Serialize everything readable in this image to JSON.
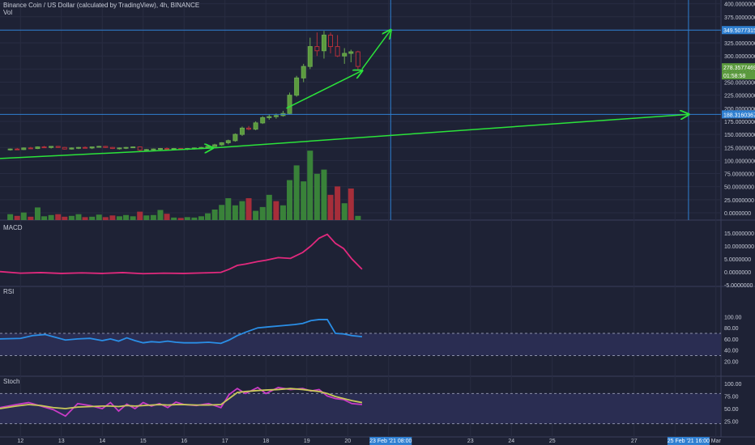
{
  "header": {
    "symbol_title": "Binance Coin / US Dollar (calculated by TradingView), 4h, BINANCE",
    "vol_label": "Vol"
  },
  "panes": {
    "macd_label": "MACD",
    "rsi_label": "RSI",
    "stoch_label": "Stoch"
  },
  "colors": {
    "background": "#1e2235",
    "up": "#3c8d3a",
    "down": "#b5303b",
    "hline": "#2f7fd1",
    "arrow": "#2be33a",
    "macd": "#e2297d",
    "rsi": "#2a8ee6",
    "stoch_k": "#c93bc6",
    "stoch_d": "#c9c85a",
    "band": "#2a2d52"
  },
  "price_axis": {
    "ticks": [
      "400.0000000",
      "375.0000000",
      "350.0000000",
      "325.0000000",
      "300.0000000",
      "275.0000000",
      "250.0000000",
      "225.0000000",
      "200.0000000",
      "175.0000000",
      "150.0000000",
      "125.0000000",
      "100.0000000",
      "75.0000000",
      "50.0000000",
      "25.0000000",
      "0.0000000"
    ],
    "tick_values": [
      400,
      375,
      350,
      325,
      300,
      275,
      250,
      225,
      200,
      175,
      150,
      125,
      100,
      75,
      50,
      25,
      0
    ],
    "current_price_tag": "278.3577469",
    "countdown_tag": "01:58:58",
    "hline_upper_tag": "349.5077315",
    "hline_lower_tag": "188.3160367",
    "hline_upper_value": 349.5,
    "hline_lower_value": 188.3
  },
  "macd_axis": {
    "ticks": [
      "15.0000000",
      "10.0000000",
      "5.0000000",
      "0.0000000",
      "-5.0000000"
    ],
    "tick_values": [
      15,
      10,
      5,
      0,
      -5
    ]
  },
  "rsi_axis": {
    "ticks": [
      "100.00",
      "80.00",
      "60.00",
      "40.00",
      "20.00"
    ],
    "tick_values": [
      100,
      80,
      60,
      40,
      20
    ]
  },
  "stoch_axis": {
    "ticks": [
      "100.00",
      "75.00",
      "50.00",
      "25.00"
    ],
    "tick_values": [
      100,
      75,
      50,
      25
    ]
  },
  "time_axis": {
    "labels": [
      "12",
      "13",
      "14",
      "15",
      "16",
      "17",
      "18",
      "19",
      "20",
      "21",
      "23",
      "24",
      "25",
      "27",
      "28",
      "Mar"
    ],
    "highlight_labels": [
      "23 Feb '21  08:00",
      "25 Feb '21  16:00"
    ]
  },
  "chart_data": {
    "type": "line",
    "x_unit": "days (Feb 2021)",
    "x_range": [
      11.5,
      29
    ],
    "candles": [
      [
        11.75,
        121,
        123,
        119,
        122
      ],
      [
        11.92,
        122,
        124,
        120,
        121
      ],
      [
        12.08,
        121,
        125,
        120,
        124
      ],
      [
        12.25,
        124,
        126,
        122,
        123
      ],
      [
        12.42,
        123,
        127,
        122,
        126
      ],
      [
        12.58,
        126,
        128,
        124,
        125
      ],
      [
        12.75,
        125,
        127,
        123,
        127
      ],
      [
        12.92,
        127,
        128,
        124,
        125
      ],
      [
        13.08,
        125,
        126,
        121,
        122
      ],
      [
        13.25,
        122,
        125,
        121,
        124
      ],
      [
        13.42,
        124,
        126,
        122,
        125
      ],
      [
        13.58,
        125,
        127,
        123,
        124
      ],
      [
        13.75,
        124,
        126,
        122,
        126
      ],
      [
        13.92,
        126,
        128,
        125,
        127
      ],
      [
        14.08,
        127,
        128,
        124,
        125
      ],
      [
        14.25,
        125,
        126,
        122,
        123
      ],
      [
        14.42,
        123,
        125,
        121,
        124
      ],
      [
        14.58,
        124,
        126,
        122,
        125
      ],
      [
        14.75,
        125,
        127,
        124,
        126
      ],
      [
        14.92,
        126,
        127,
        118,
        120
      ],
      [
        15.08,
        120,
        122,
        118,
        121
      ],
      [
        15.25,
        121,
        123,
        119,
        122
      ],
      [
        15.42,
        122,
        124,
        120,
        123
      ],
      [
        15.58,
        123,
        125,
        121,
        122
      ],
      [
        15.75,
        122,
        124,
        120,
        123
      ],
      [
        15.92,
        123,
        124,
        121,
        122
      ],
      [
        16.08,
        122,
        124,
        120,
        123
      ],
      [
        16.25,
        123,
        125,
        121,
        124
      ],
      [
        16.42,
        124,
        126,
        122,
        125
      ],
      [
        16.58,
        125,
        128,
        124,
        127
      ],
      [
        16.75,
        127,
        132,
        125,
        130
      ],
      [
        16.92,
        130,
        135,
        128,
        134
      ],
      [
        17.08,
        134,
        140,
        131,
        138
      ],
      [
        17.25,
        138,
        152,
        136,
        150
      ],
      [
        17.42,
        150,
        165,
        147,
        162
      ],
      [
        17.58,
        162,
        166,
        158,
        160
      ],
      [
        17.75,
        160,
        175,
        158,
        172
      ],
      [
        17.92,
        172,
        185,
        170,
        182
      ],
      [
        18.08,
        182,
        188,
        178,
        184
      ],
      [
        18.25,
        184,
        190,
        180,
        186
      ],
      [
        18.42,
        186,
        195,
        184,
        190
      ],
      [
        18.58,
        190,
        230,
        188,
        225
      ],
      [
        18.75,
        225,
        262,
        222,
        258
      ],
      [
        18.92,
        258,
        285,
        250,
        280
      ],
      [
        19.08,
        280,
        335,
        275,
        318
      ],
      [
        19.25,
        318,
        345,
        300,
        310
      ],
      [
        19.42,
        310,
        348,
        295,
        340
      ],
      [
        19.58,
        340,
        345,
        305,
        318
      ],
      [
        19.75,
        318,
        340,
        298,
        300
      ],
      [
        19.92,
        300,
        315,
        285,
        305
      ],
      [
        20.08,
        305,
        312,
        288,
        308
      ],
      [
        20.25,
        308,
        310,
        272,
        280
      ]
    ],
    "volume": [
      14,
      10,
      18,
      8,
      30,
      9,
      12,
      14,
      8,
      10,
      14,
      7,
      8,
      13,
      7,
      11,
      9,
      12,
      9,
      20,
      11,
      12,
      24,
      15,
      6,
      5,
      7,
      6,
      9,
      16,
      25,
      36,
      52,
      35,
      45,
      52,
      22,
      31,
      60,
      45,
      35,
      95,
      130,
      92,
      165,
      110,
      120,
      60,
      80,
      40,
      75,
      10
    ],
    "volume_up": [
      1,
      0,
      1,
      0,
      1,
      1,
      1,
      0,
      0,
      1,
      1,
      0,
      1,
      1,
      0,
      0,
      1,
      1,
      1,
      0,
      1,
      1,
      1,
      0,
      1,
      0,
      1,
      1,
      1,
      1,
      1,
      1,
      1,
      1,
      1,
      0,
      1,
      1,
      1,
      0,
      1,
      1,
      1,
      1,
      1,
      1,
      1,
      0,
      0,
      1,
      0,
      1
    ],
    "macd": [
      [
        11.5,
        0.1
      ],
      [
        12.0,
        -0.5
      ],
      [
        12.5,
        -0.3
      ],
      [
        13.0,
        -0.6
      ],
      [
        13.5,
        -0.4
      ],
      [
        14.0,
        -0.6
      ],
      [
        14.5,
        -0.3
      ],
      [
        15.0,
        -0.7
      ],
      [
        15.5,
        -0.5
      ],
      [
        16.0,
        -0.6
      ],
      [
        16.5,
        -0.4
      ],
      [
        16.9,
        -0.2
      ],
      [
        17.1,
        1.0
      ],
      [
        17.3,
        2.5
      ],
      [
        17.5,
        3.0
      ],
      [
        17.8,
        4.0
      ],
      [
        18.0,
        4.5
      ],
      [
        18.3,
        5.5
      ],
      [
        18.6,
        5.2
      ],
      [
        18.9,
        7.5
      ],
      [
        19.1,
        10.0
      ],
      [
        19.3,
        13.0
      ],
      [
        19.5,
        14.5
      ],
      [
        19.7,
        11.0
      ],
      [
        19.9,
        9.0
      ],
      [
        20.1,
        5.0
      ],
      [
        20.35,
        1.0
      ]
    ],
    "rsi": [
      [
        11.5,
        60
      ],
      [
        12.0,
        61
      ],
      [
        12.3,
        66
      ],
      [
        12.6,
        68
      ],
      [
        12.9,
        62
      ],
      [
        13.1,
        58
      ],
      [
        13.4,
        60
      ],
      [
        13.7,
        61
      ],
      [
        14.0,
        57
      ],
      [
        14.2,
        60
      ],
      [
        14.4,
        56
      ],
      [
        14.6,
        62
      ],
      [
        14.8,
        57
      ],
      [
        15.0,
        53
      ],
      [
        15.2,
        55
      ],
      [
        15.4,
        54
      ],
      [
        15.6,
        56
      ],
      [
        15.8,
        54
      ],
      [
        16.0,
        53
      ],
      [
        16.3,
        53
      ],
      [
        16.6,
        54
      ],
      [
        16.9,
        52
      ],
      [
        17.1,
        58
      ],
      [
        17.3,
        66
      ],
      [
        17.5,
        72
      ],
      [
        17.8,
        80
      ],
      [
        18.1,
        82
      ],
      [
        18.4,
        84
      ],
      [
        18.7,
        86
      ],
      [
        18.9,
        88
      ],
      [
        19.1,
        93
      ],
      [
        19.3,
        95
      ],
      [
        19.5,
        95
      ],
      [
        19.7,
        70
      ],
      [
        19.9,
        69
      ],
      [
        20.1,
        66
      ],
      [
        20.35,
        64
      ]
    ],
    "rsi_band": [
      30,
      70
    ],
    "stoch_k": [
      [
        11.5,
        52
      ],
      [
        11.9,
        58
      ],
      [
        12.2,
        62
      ],
      [
        12.5,
        55
      ],
      [
        12.8,
        48
      ],
      [
        13.1,
        35
      ],
      [
        13.4,
        60
      ],
      [
        13.7,
        56
      ],
      [
        14.0,
        50
      ],
      [
        14.2,
        62
      ],
      [
        14.4,
        45
      ],
      [
        14.6,
        59
      ],
      [
        14.8,
        50
      ],
      [
        15.0,
        62
      ],
      [
        15.2,
        55
      ],
      [
        15.4,
        60
      ],
      [
        15.6,
        52
      ],
      [
        15.8,
        63
      ],
      [
        16.0,
        58
      ],
      [
        16.3,
        56
      ],
      [
        16.6,
        60
      ],
      [
        16.9,
        52
      ],
      [
        17.1,
        78
      ],
      [
        17.3,
        90
      ],
      [
        17.5,
        80
      ],
      [
        17.8,
        92
      ],
      [
        18.0,
        80
      ],
      [
        18.3,
        92
      ],
      [
        18.6,
        88
      ],
      [
        18.9,
        90
      ],
      [
        19.1,
        85
      ],
      [
        19.3,
        88
      ],
      [
        19.5,
        75
      ],
      [
        19.7,
        70
      ],
      [
        19.9,
        68
      ],
      [
        20.1,
        60
      ],
      [
        20.35,
        58
      ]
    ],
    "stoch_d": [
      [
        11.5,
        50
      ],
      [
        11.9,
        55
      ],
      [
        12.2,
        58
      ],
      [
        12.5,
        56
      ],
      [
        12.8,
        52
      ],
      [
        13.1,
        50
      ],
      [
        13.4,
        53
      ],
      [
        13.7,
        54
      ],
      [
        14.0,
        55
      ],
      [
        14.2,
        55
      ],
      [
        14.4,
        54
      ],
      [
        14.6,
        56
      ],
      [
        14.8,
        55
      ],
      [
        15.0,
        56
      ],
      [
        15.2,
        57
      ],
      [
        15.4,
        58
      ],
      [
        15.6,
        57
      ],
      [
        15.8,
        58
      ],
      [
        16.0,
        58
      ],
      [
        16.3,
        57
      ],
      [
        16.6,
        57
      ],
      [
        16.9,
        58
      ],
      [
        17.1,
        70
      ],
      [
        17.3,
        82
      ],
      [
        17.5,
        84
      ],
      [
        17.8,
        86
      ],
      [
        18.0,
        87
      ],
      [
        18.3,
        88
      ],
      [
        18.6,
        90
      ],
      [
        18.9,
        88
      ],
      [
        19.1,
        86
      ],
      [
        19.3,
        84
      ],
      [
        19.5,
        80
      ],
      [
        19.7,
        74
      ],
      [
        19.9,
        70
      ],
      [
        20.1,
        66
      ],
      [
        20.35,
        62
      ]
    ],
    "stoch_band": [
      20,
      80
    ],
    "horizontal_lines": [
      349.5,
      188.3
    ],
    "vertical_lines": [
      21.05,
      28.33
    ],
    "arrows": [
      [
        [
          11.5,
          104
        ],
        [
          16.7,
          124
        ]
      ],
      [
        [
          16.7,
          124
        ],
        [
          28.33,
          188.3
        ]
      ],
      [
        [
          18.5,
          200
        ],
        [
          20.35,
          272
        ]
      ],
      [
        [
          20.35,
          275
        ],
        [
          21.05,
          349.5
        ]
      ]
    ]
  }
}
